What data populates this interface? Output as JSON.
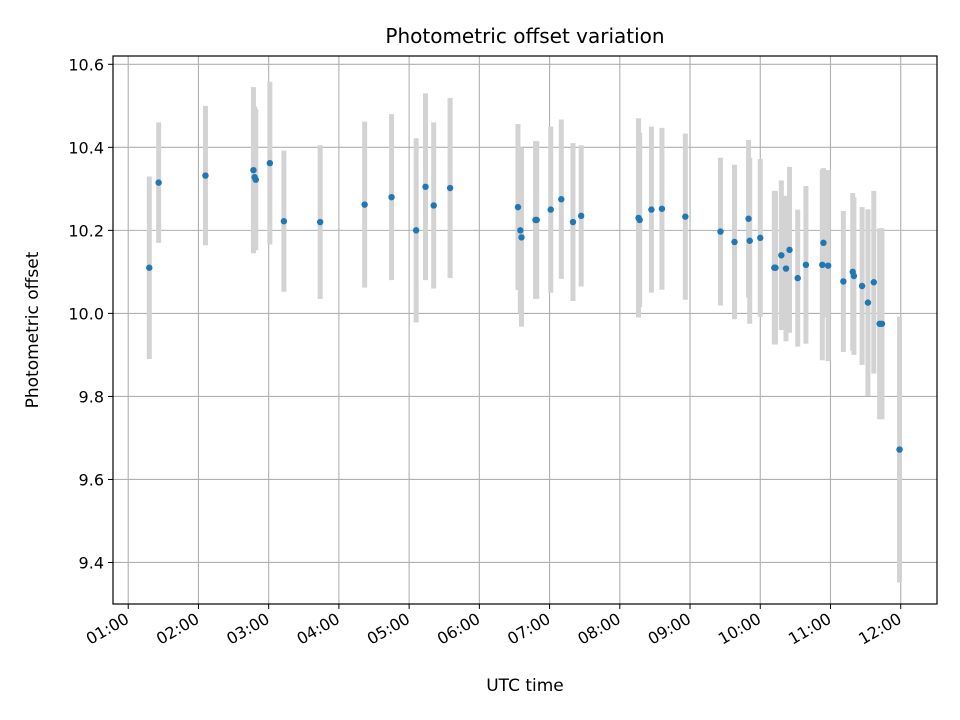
{
  "chart_data": {
    "type": "scatter",
    "title": "Photometric offset variation",
    "xlabel": "UTC time",
    "ylabel": "Photometric offset",
    "x_ticks": [
      "01:00",
      "02:00",
      "03:00",
      "04:00",
      "05:00",
      "06:00",
      "07:00",
      "08:00",
      "09:00",
      "10:00",
      "11:00",
      "12:00"
    ],
    "y_ticks": [
      "9.4",
      "9.6",
      "9.8",
      "10.0",
      "10.2",
      "10.4",
      "10.6"
    ],
    "xlim": [
      "00:47",
      "12:31"
    ],
    "ylim": [
      9.3,
      10.62
    ],
    "grid": true,
    "colors": {
      "points": "#1f77b4",
      "errorbars": "#d3d3d3",
      "grid": "#b0b0b0"
    },
    "series": [
      {
        "x": [
          "01:18",
          "01:26",
          "02:06",
          "02:47",
          "02:48",
          "02:49",
          "03:01",
          "03:13",
          "03:44",
          "04:22",
          "04:45",
          "05:06",
          "05:14",
          "05:21",
          "05:35",
          "06:33",
          "06:35",
          "06:36",
          "06:48",
          "06:49",
          "07:01",
          "07:10",
          "07:20",
          "07:27",
          "08:16",
          "08:17",
          "08:27",
          "08:36",
          "08:56",
          "09:26",
          "09:38",
          "09:50",
          "09:51",
          "10:00",
          "10:12",
          "10:13",
          "10:18",
          "10:22",
          "10:25",
          "10:32",
          "10:39",
          "10:53",
          "10:54",
          "10:58",
          "11:11",
          "11:19",
          "11:20",
          "11:27",
          "11:32",
          "11:37",
          "11:42",
          "11:44",
          "11:59"
        ],
        "y": [
          10.11,
          10.315,
          10.332,
          10.345,
          10.328,
          10.322,
          10.362,
          10.222,
          10.22,
          10.262,
          10.28,
          10.2,
          10.305,
          10.26,
          10.302,
          10.256,
          10.2,
          10.183,
          10.225,
          10.225,
          10.25,
          10.275,
          10.22,
          10.235,
          10.23,
          10.225,
          10.25,
          10.252,
          10.233,
          10.197,
          10.172,
          10.228,
          10.175,
          10.182,
          10.11,
          10.11,
          10.14,
          10.108,
          10.153,
          10.085,
          10.117,
          10.117,
          10.17,
          10.115,
          10.077,
          10.1,
          10.09,
          10.066,
          10.026,
          10.075,
          9.975,
          9.975,
          9.672
        ],
        "err": [
          0.22,
          0.145,
          0.168,
          0.2,
          0.17,
          0.17,
          0.196,
          0.17,
          0.185,
          0.2,
          0.2,
          0.222,
          0.225,
          0.2,
          0.217,
          0.2,
          0.2,
          0.215,
          0.19,
          0.19,
          0.2,
          0.192,
          0.19,
          0.17,
          0.24,
          0.21,
          0.2,
          0.195,
          0.2,
          0.178,
          0.186,
          0.19,
          0.2,
          0.19,
          0.185,
          0.185,
          0.18,
          0.175,
          0.2,
          0.165,
          0.19,
          0.23,
          0.18,
          0.23,
          0.17,
          0.19,
          0.19,
          0.19,
          0.225,
          0.22,
          0.23,
          0.23,
          0.32
        ]
      }
    ]
  }
}
